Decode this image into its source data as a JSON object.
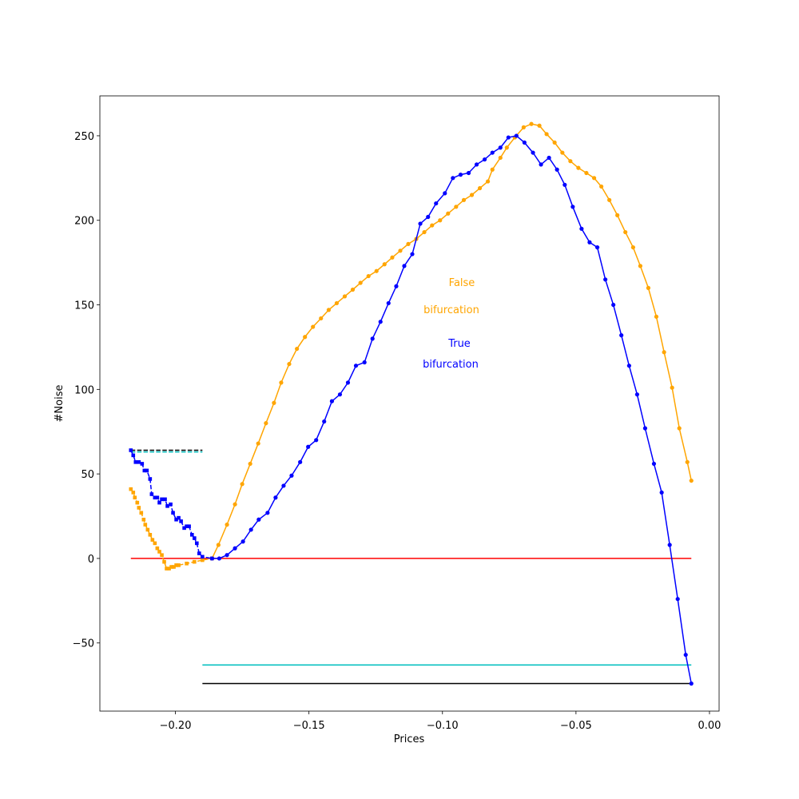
{
  "chart_data": {
    "type": "line",
    "xlabel": "Prices",
    "ylabel": "#Noise",
    "xlim": [
      -0.2283,
      0.0036
    ],
    "ylim": [
      -90.3,
      273.6
    ],
    "xticks": [
      {
        "value": -0.2,
        "label": "−0.20"
      },
      {
        "value": -0.15,
        "label": "−0.15"
      },
      {
        "value": -0.1,
        "label": "−0.10"
      },
      {
        "value": -0.05,
        "label": "−0.05"
      },
      {
        "value": 0,
        "label": "0.00"
      }
    ],
    "yticks": [
      {
        "value": -50,
        "label": "−50"
      },
      0,
      50,
      100,
      150,
      200,
      250
    ],
    "annotations": [
      {
        "text": "False",
        "color": "#ffa500"
      },
      {
        "text": "bifurcation",
        "color": "#ffa500"
      },
      {
        "text": "True",
        "color": "#0000ff"
      },
      {
        "text": "bifurcation",
        "color": "#0000ff"
      }
    ],
    "series": [
      {
        "color": "#ff0000",
        "style": "solid",
        "marker": "none",
        "x": [
          -0.2167,
          -0.0068
        ],
        "values": [
          0,
          0
        ]
      },
      {
        "color": "#00bfbf",
        "style": "solid",
        "marker": "none",
        "x": [
          -0.1899,
          -0.0068
        ],
        "values": [
          -63,
          -63
        ]
      },
      {
        "color": "#000000",
        "style": "solid",
        "marker": "none",
        "x": [
          -0.1899,
          -0.0068
        ],
        "values": [
          -74,
          -74
        ]
      },
      {
        "color": "#000000",
        "style": "dashed",
        "marker": "none",
        "x": [
          -0.2167,
          -0.1899
        ],
        "values": [
          64,
          64
        ]
      },
      {
        "color": "#00bfbf",
        "style": "dashed",
        "marker": "none",
        "x": [
          -0.2167,
          -0.1899
        ],
        "values": [
          63,
          63
        ]
      },
      {
        "color": "#ffa500",
        "style": "dashed",
        "marker": "square",
        "x": [
          -0.2167,
          -0.2158,
          -0.2152,
          -0.2143,
          -0.2137,
          -0.2128,
          -0.2119,
          -0.2113,
          -0.2104,
          -0.2095,
          -0.2086,
          -0.2077,
          -0.2068,
          -0.206,
          -0.2051,
          -0.2042,
          -0.2033,
          -0.2024,
          -0.2015,
          -0.2006,
          -0.1997,
          -0.1988,
          -0.1958,
          -0.1929,
          -0.1899,
          -0.1863
        ],
        "values": [
          41,
          39,
          36,
          33,
          30,
          27,
          23,
          20,
          17,
          14,
          11,
          9,
          6,
          4,
          2,
          -2,
          -6,
          -6,
          -5,
          -5,
          -4,
          -4,
          -3,
          -2,
          -1,
          0
        ]
      },
      {
        "color": "#0000ff",
        "style": "dashed",
        "marker": "square",
        "x": [
          -0.2167,
          -0.2158,
          -0.2149,
          -0.2137,
          -0.2125,
          -0.2116,
          -0.2107,
          -0.2095,
          -0.2089,
          -0.2077,
          -0.2068,
          -0.206,
          -0.2051,
          -0.2039,
          -0.203,
          -0.2018,
          -0.2009,
          -0.1997,
          -0.1988,
          -0.1979,
          -0.1967,
          -0.1958,
          -0.1949,
          -0.1938,
          -0.1929,
          -0.192,
          -0.1911,
          -0.1899,
          -0.1863
        ],
        "values": [
          64,
          61,
          57,
          57,
          56,
          52,
          52,
          47,
          38,
          36,
          36,
          33,
          35,
          35,
          31,
          32,
          27,
          23,
          24,
          22,
          18,
          19,
          19,
          14,
          12,
          9,
          3,
          1,
          0
        ]
      },
      {
        "color": "#ffa500",
        "style": "solid",
        "marker": "circle",
        "x": [
          -0.1863,
          -0.1839,
          -0.1807,
          -0.1777,
          -0.175,
          -0.172,
          -0.169,
          -0.1661,
          -0.1631,
          -0.1604,
          -0.1574,
          -0.1545,
          -0.1515,
          -0.1485,
          -0.1455,
          -0.1426,
          -0.1396,
          -0.1366,
          -0.1336,
          -0.1307,
          -0.1277,
          -0.1247,
          -0.1217,
          -0.1188,
          -0.1158,
          -0.1128,
          -0.1098,
          -0.1068,
          -0.1039,
          -0.1009,
          -0.0979,
          -0.0949,
          -0.092,
          -0.089,
          -0.086,
          -0.083,
          -0.0813,
          -0.0783,
          -0.0759,
          -0.0729,
          -0.0696,
          -0.0667,
          -0.0637,
          -0.061,
          -0.058,
          -0.0551,
          -0.0521,
          -0.0491,
          -0.0461,
          -0.0432,
          -0.0405,
          -0.0375,
          -0.0345,
          -0.0315,
          -0.0286,
          -0.0259,
          -0.0229,
          -0.0199,
          -0.017,
          -0.014,
          -0.0113,
          -0.0083,
          -0.0068
        ],
        "values": [
          0,
          8,
          20,
          32,
          44,
          56,
          68,
          80,
          92,
          104,
          115,
          124,
          131,
          137,
          142,
          147,
          151,
          155,
          159,
          163,
          167,
          170,
          174,
          178,
          182,
          186,
          189,
          193,
          197,
          200,
          204,
          208,
          212,
          215,
          219,
          223,
          230,
          237,
          243,
          249,
          255,
          257,
          256,
          251,
          246,
          240,
          235,
          231,
          228,
          225,
          220,
          212,
          203,
          193,
          184,
          173,
          160,
          143,
          122,
          101,
          77,
          57,
          46
        ]
      },
      {
        "color": "#0000ff",
        "style": "solid",
        "marker": "circle",
        "x": [
          -0.1863,
          -0.1836,
          -0.1807,
          -0.1777,
          -0.1747,
          -0.1717,
          -0.1688,
          -0.1655,
          -0.1625,
          -0.1595,
          -0.1565,
          -0.1533,
          -0.1503,
          -0.1473,
          -0.1443,
          -0.1414,
          -0.1384,
          -0.1354,
          -0.1324,
          -0.1292,
          -0.1262,
          -0.1232,
          -0.1202,
          -0.1173,
          -0.1143,
          -0.1113,
          -0.1083,
          -0.1054,
          -0.1024,
          -0.0991,
          -0.0961,
          -0.0932,
          -0.0902,
          -0.0872,
          -0.0842,
          -0.0813,
          -0.0783,
          -0.0753,
          -0.0723,
          -0.0693,
          -0.0661,
          -0.0631,
          -0.0601,
          -0.0571,
          -0.0542,
          -0.0512,
          -0.0479,
          -0.0449,
          -0.042,
          -0.039,
          -0.036,
          -0.033,
          -0.0301,
          -0.0271,
          -0.0241,
          -0.0208,
          -0.0179,
          -0.0149,
          -0.0119,
          -0.0089,
          -0.0068
        ],
        "values": [
          0,
          0,
          2,
          6,
          10,
          17,
          23,
          27,
          36,
          43,
          49,
          57,
          66,
          70,
          81,
          93,
          97,
          104,
          114,
          116,
          130,
          140,
          151,
          161,
          173,
          180,
          198,
          202,
          210,
          216,
          225,
          227,
          228,
          233,
          236,
          240,
          243,
          249,
          250,
          246,
          240,
          233,
          237,
          230,
          221,
          208,
          195,
          187,
          184,
          165,
          150,
          132,
          114,
          97,
          77,
          56,
          39,
          8,
          -24,
          -57,
          -74
        ]
      }
    ]
  }
}
